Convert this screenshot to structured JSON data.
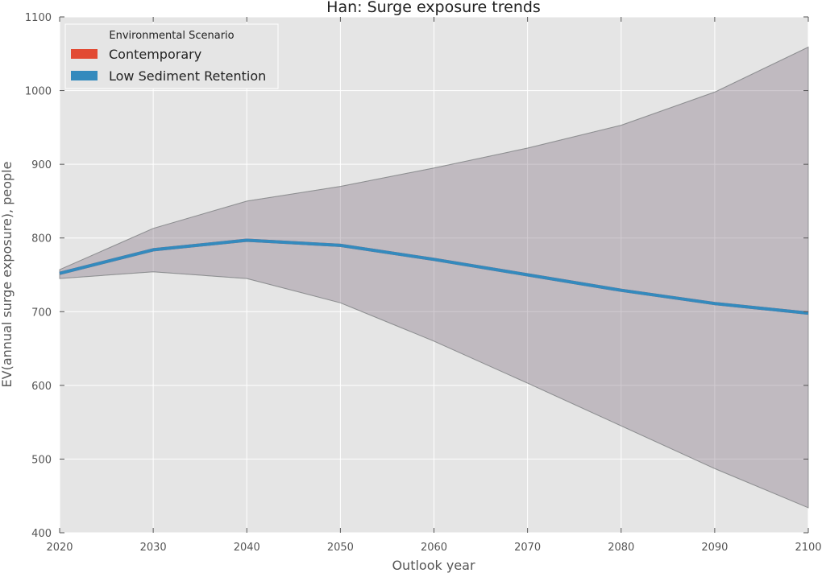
{
  "chart_data": {
    "type": "line",
    "title": "Han: Surge exposure trends",
    "xlabel": "Outlook year",
    "ylabel": "EV(annual surge exposure), people",
    "xlim": [
      2020,
      2100
    ],
    "ylim": [
      400,
      1100
    ],
    "x_ticks": [
      "2020",
      "2030",
      "2040",
      "2050",
      "2060",
      "2070",
      "2080",
      "2090",
      "2100"
    ],
    "y_ticks": [
      "400",
      "500",
      "600",
      "700",
      "800",
      "900",
      "1000",
      "1100"
    ],
    "grid": true,
    "legend": {
      "title": "Environmental Scenario",
      "placement": "top-left"
    },
    "x": [
      2020,
      2030,
      2040,
      2050,
      2060,
      2070,
      2080,
      2090,
      2100
    ],
    "series": [
      {
        "name": "Contemporary",
        "color": "#e24a33",
        "values": [
          752,
          784,
          797,
          790,
          771,
          750,
          729,
          711,
          698
        ],
        "band_lower": [
          745,
          754,
          745,
          712,
          660,
          603,
          545,
          487,
          434
        ],
        "band_upper": [
          757,
          813,
          850,
          870,
          895,
          922,
          953,
          998,
          1059
        ]
      },
      {
        "name": "Low Sediment Retention",
        "color": "#348abd",
        "values": [
          752,
          784,
          797,
          790,
          771,
          750,
          729,
          711,
          698
        ],
        "band_lower": [
          745,
          754,
          745,
          712,
          660,
          603,
          545,
          487,
          434
        ],
        "band_upper": [
          757,
          813,
          850,
          870,
          895,
          922,
          953,
          998,
          1059
        ]
      }
    ]
  }
}
